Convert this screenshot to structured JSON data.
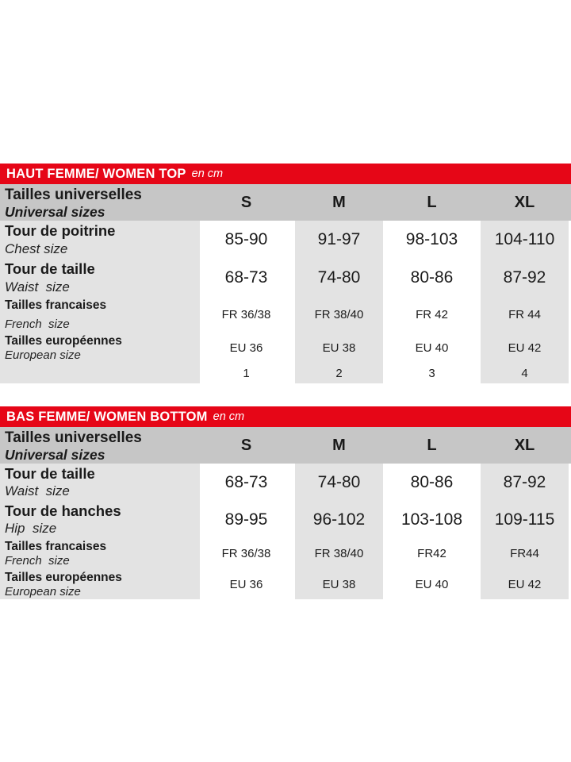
{
  "colors": {
    "title_bar_red": "#e60617",
    "header_row_gray": "#c6c6c6",
    "column_band_gray": "#e3e3e3",
    "text": "#1a1a1a",
    "background": "#ffffff"
  },
  "tables": [
    {
      "title": "HAUT FEMME/ WOMEN TOP",
      "title_suffix": "en cm",
      "header": {
        "label_fr": "Tailles universelles",
        "label_en": "Universal sizes",
        "sizes": [
          "S",
          "M",
          "L",
          "XL"
        ]
      },
      "rows": [
        {
          "label_fr": "Tour de poitrine",
          "label_en": "Chest size",
          "values": [
            "85-90",
            "91-97",
            "98-103",
            "104-110"
          ]
        },
        {
          "label_fr": "Tour de taille",
          "label_en": "Waist  size",
          "values": [
            "68-73",
            "74-80",
            "80-86",
            "87-92"
          ]
        },
        {
          "label_fr": "Tailles francaises",
          "label_en": "French  size",
          "values": [
            "FR 36/38",
            "FR 38/40",
            "FR 42",
            "FR 44"
          ]
        },
        {
          "label_fr": "Tailles européennes",
          "label_en": "European size",
          "values": [
            "EU 36",
            "EU 38",
            "EU 40",
            "EU 42"
          ]
        },
        {
          "label_fr": "",
          "label_en": "",
          "values": [
            "1",
            "2",
            "3",
            "4"
          ]
        }
      ]
    },
    {
      "title": "BAS FEMME/ WOMEN BOTTOM",
      "title_suffix": "en cm",
      "header": {
        "label_fr": "Tailles universelles",
        "label_en": "Universal sizes",
        "sizes": [
          "S",
          "M",
          "L",
          "XL"
        ]
      },
      "rows": [
        {
          "label_fr": "Tour de taille",
          "label_en": "Waist  size",
          "values": [
            "68-73",
            "74-80",
            "80-86",
            "87-92"
          ]
        },
        {
          "label_fr": "Tour de hanches",
          "label_en": "Hip  size",
          "values": [
            "89-95",
            "96-102",
            "103-108",
            "109-115"
          ]
        },
        {
          "label_fr": "Tailles francaises",
          "label_en": "French  size",
          "values": [
            "FR 36/38",
            "FR 38/40",
            "FR42",
            "FR44"
          ]
        },
        {
          "label_fr": "Tailles européennes",
          "label_en": "European size",
          "values": [
            "EU 36",
            "EU 38",
            "EU 40",
            "EU 42"
          ]
        }
      ]
    }
  ]
}
